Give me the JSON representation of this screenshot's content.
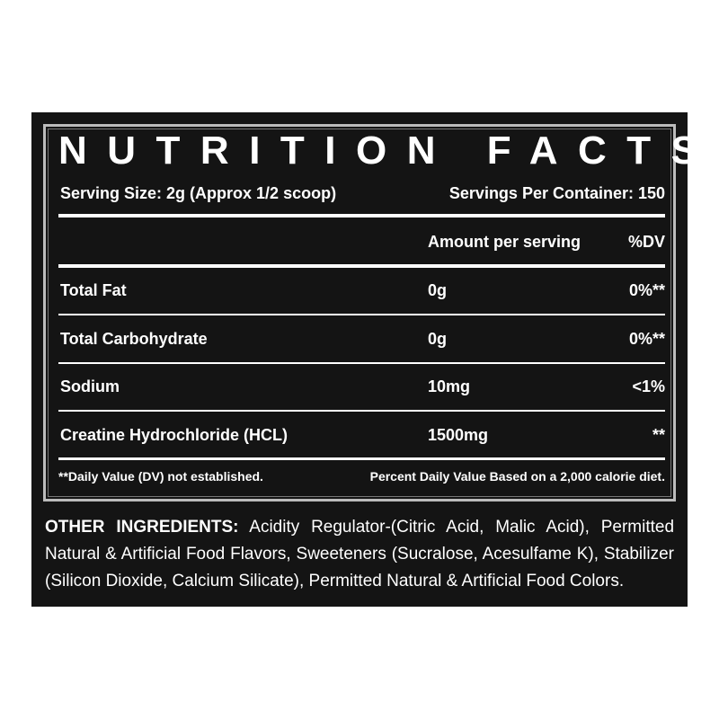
{
  "title": "NUTRITION FACTS",
  "serving_size": "Serving Size:  2g  (Approx 1/2 scoop)",
  "servings_per_container": "Servings Per Container: 150",
  "table": {
    "header": [
      "Amount per serving",
      "%DV"
    ],
    "rows": [
      [
        "Total Fat",
        "0g",
        "0%**"
      ],
      [
        "Total Carbohydrate",
        "0g",
        "0%**"
      ],
      [
        "Sodium",
        "10mg",
        "<1%"
      ],
      [
        "Creatine Hydrochloride (HCL)",
        "1500mg",
        "**"
      ]
    ]
  },
  "footnotes": [
    "**Daily Value (DV) not established.",
    "Percent Daily Value Based on a 2,000 calorie diet."
  ],
  "other_ingredients": {
    "label": "OTHER INGREDIENTS:",
    "text": "Acidity Regulator-(Citric Acid, Malic Acid), Permitted Natural & Artificial Food Flavors, Sweeteners (Sucralose, Acesulfame K), Stabilizer (Silicon Dioxide, Calcium Silicate), Permitted Natural & Artificial Food Colors."
  }
}
